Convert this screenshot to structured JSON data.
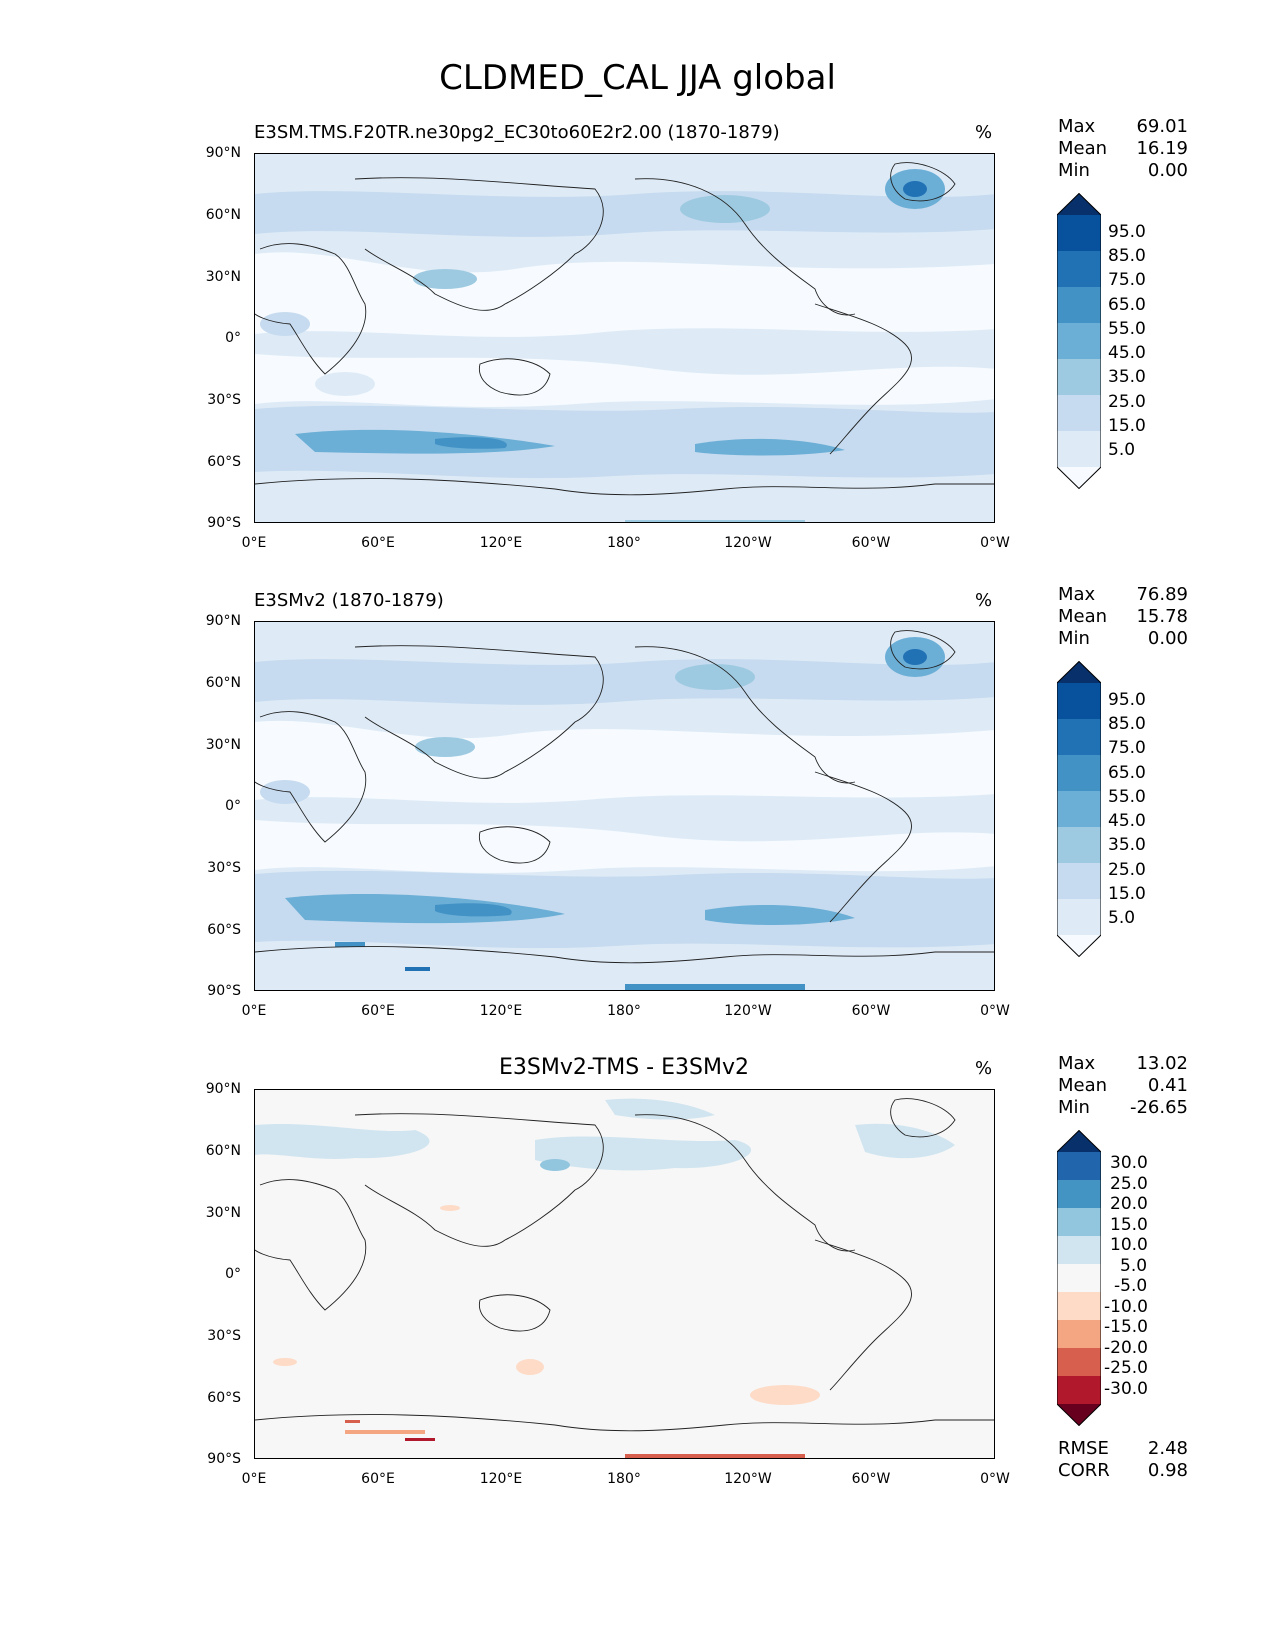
{
  "figure": {
    "title": "CLDMED_CAL JJA global"
  },
  "axes": {
    "y_ticks": [
      "90°N",
      "60°N",
      "30°N",
      "0°",
      "30°S",
      "60°S",
      "90°S"
    ],
    "x_ticks": [
      "0°E",
      "60°E",
      "120°E",
      "180°",
      "120°W",
      "60°W",
      "0°W"
    ]
  },
  "panels": [
    {
      "id": "test",
      "title": "E3SM.TMS.F20TR.ne30pg2_EC30to60E2r2.00 (1870-1879)",
      "unit": "%",
      "stats": [
        {
          "label": "Max",
          "value": "69.01"
        },
        {
          "label": "Mean",
          "value": "16.19"
        },
        {
          "label": "Min",
          "value": "0.00"
        }
      ],
      "colorbar": {
        "labels": [
          "95.0",
          "85.0",
          "75.0",
          "65.0",
          "55.0",
          "45.0",
          "35.0",
          "25.0",
          "15.0",
          "5.0"
        ],
        "colors": [
          "#08306b",
          "#08519c",
          "#2171b5",
          "#4292c6",
          "#6baed6",
          "#9ecae1",
          "#c6dbef",
          "#deebf7",
          "#f7fbff"
        ]
      }
    },
    {
      "id": "reference",
      "title": "E3SMv2 (1870-1879)",
      "unit": "%",
      "stats": [
        {
          "label": "Max",
          "value": "76.89"
        },
        {
          "label": "Mean",
          "value": "15.78"
        },
        {
          "label": "Min",
          "value": "0.00"
        }
      ],
      "colorbar": {
        "labels": [
          "95.0",
          "85.0",
          "75.0",
          "65.0",
          "55.0",
          "45.0",
          "35.0",
          "25.0",
          "15.0",
          "5.0"
        ],
        "colors": [
          "#08306b",
          "#08519c",
          "#2171b5",
          "#4292c6",
          "#6baed6",
          "#9ecae1",
          "#c6dbef",
          "#deebf7",
          "#f7fbff"
        ]
      }
    },
    {
      "id": "difference",
      "title": "E3SMv2-TMS - E3SMv2",
      "unit": "%",
      "stats": [
        {
          "label": "Max",
          "value": "13.02"
        },
        {
          "label": "Mean",
          "value": "0.41"
        },
        {
          "label": "Min",
          "value": "-26.65"
        }
      ],
      "metrics": [
        {
          "label": "RMSE",
          "value": "2.48"
        },
        {
          "label": "CORR",
          "value": "0.98"
        }
      ],
      "colorbar": {
        "labels": [
          "30.0",
          "25.0",
          "20.0",
          "15.0",
          "10.0",
          "5.0",
          "-5.0",
          "-10.0",
          "-15.0",
          "-20.0",
          "-25.0",
          "-30.0"
        ],
        "colors": [
          "#08306b",
          "#2166ac",
          "#4393c3",
          "#92c5de",
          "#d1e5f0",
          "#f7f7f7",
          "#fddbc7",
          "#f4a582",
          "#d6604d",
          "#b2182b",
          "#67001f"
        ]
      }
    }
  ]
}
